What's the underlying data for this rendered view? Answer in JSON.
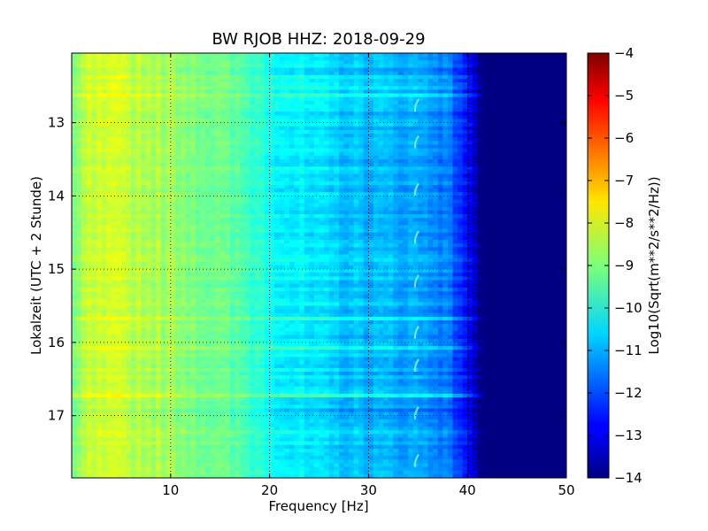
{
  "chart_data": {
    "type": "heatmap",
    "title": "BW RJOB HHZ: 2018-09-29",
    "xlabel": "Frequency [Hz]",
    "ylabel": "Lokalzeit (UTC + 2 Stunde)",
    "xlim": [
      0,
      50
    ],
    "ylim": [
      12.05,
      17.85
    ],
    "y_inverted": true,
    "x_ticks": [
      10,
      20,
      30,
      40,
      50
    ],
    "x_tick_labels": [
      "10",
      "20",
      "30",
      "40",
      "50"
    ],
    "y_ticks": [
      13,
      14,
      15,
      16,
      17
    ],
    "y_tick_labels": [
      "13",
      "14",
      "15",
      "16",
      "17"
    ],
    "grid": true,
    "colormap": "jet",
    "colorbar": {
      "label": "Log10(Sqrt(m**2/s**2/Hz))",
      "range": [
        -14,
        -4
      ],
      "ticks": [
        -4,
        -5,
        -6,
        -7,
        -8,
        -9,
        -10,
        -11,
        -12,
        -13,
        -14
      ],
      "tick_labels": [
        "−4",
        "−5",
        "−6",
        "−7",
        "−8",
        "−9",
        "−10",
        "−11",
        "−12",
        "−13",
        "−14"
      ]
    },
    "spectrum_profile": {
      "freq_hz": [
        0,
        1,
        2,
        5,
        8,
        12,
        15,
        18,
        20,
        22,
        25,
        28,
        30,
        33,
        35,
        37,
        38,
        39,
        40,
        40.5,
        41,
        42,
        45,
        50
      ],
      "level": [
        -9.4,
        -8.6,
        -8.3,
        -8.3,
        -8.5,
        -8.9,
        -9.2,
        -9.6,
        -10.0,
        -10.3,
        -10.6,
        -10.8,
        -10.9,
        -11.0,
        -11.1,
        -11.3,
        -11.6,
        -12.0,
        -12.6,
        -13.2,
        -13.8,
        -14.0,
        -14.0,
        -14.0
      ]
    },
    "features": [
      {
        "type": "tonal-line",
        "center_hz": 34.8,
        "hours": [
          12.8,
          13.3,
          13.95,
          14.6,
          15.2,
          15.9,
          16.35,
          17.0,
          17.65
        ]
      }
    ]
  }
}
